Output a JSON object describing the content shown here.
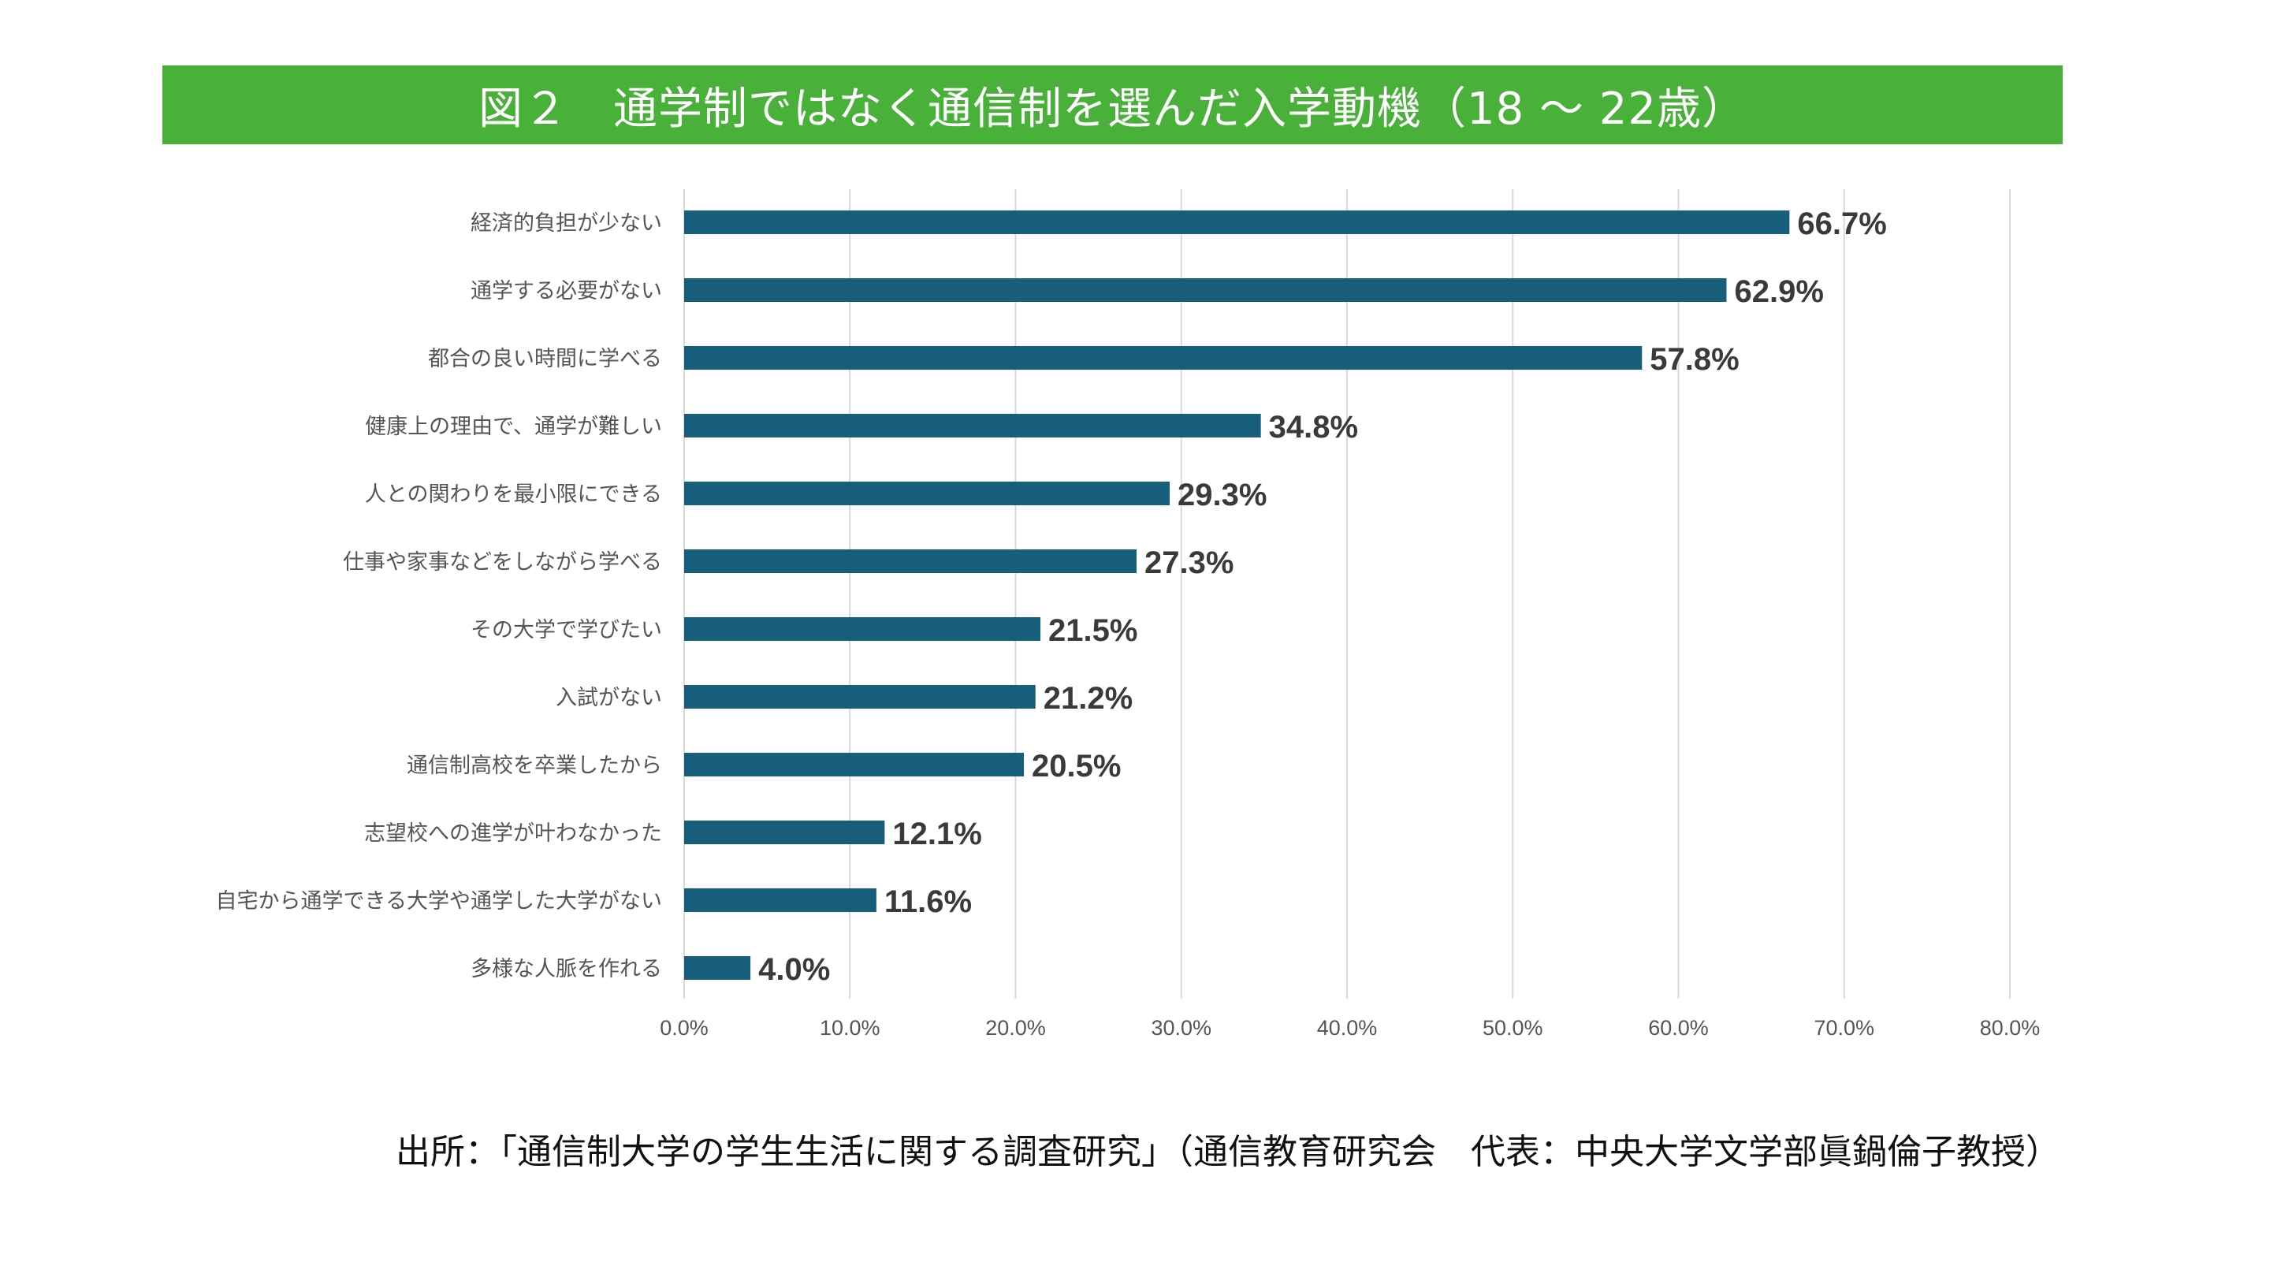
{
  "title": "図２　通学制ではなく通信制を選んだ入学動機（18 ～ 22歳）",
  "footer": "出所：「通信制大学の学生生活に関する調査研究」（通信教育研究会　代表：中央大学文学部眞鍋倫子教授）",
  "colors": {
    "title_background": "#49B03A",
    "bar": "#175E7D",
    "gridline": "#D9D9D9",
    "value_label": "#3A3A3A",
    "category_label": "#555555"
  },
  "chart_data": {
    "type": "bar",
    "orientation": "horizontal",
    "title": "図２　通学制ではなく通信制を選んだ入学動機（18 ～ 22歳）",
    "xlabel": "",
    "ylabel": "",
    "xlim": [
      0,
      80
    ],
    "x_unit": "%",
    "grid": true,
    "legend": "none",
    "categories": [
      "経済的負担が少ない",
      "通学する必要がない",
      "都合の良い時間に学べる",
      "健康上の理由で、通学が難しい",
      "人との関わりを最小限にできる",
      "仕事や家事などをしながら学べる",
      "その大学で学びたい",
      "入試がない",
      "通信制高校を卒業したから",
      "志望校への進学が叶わなかった",
      "自宅から通学できる大学や通学した大学がない",
      "多様な人脈を作れる"
    ],
    "values": [
      66.7,
      62.9,
      57.8,
      34.8,
      29.3,
      27.3,
      21.5,
      21.2,
      20.5,
      12.1,
      11.6,
      4.0
    ],
    "value_labels": [
      "66.7%",
      "62.9%",
      "57.8%",
      "34.8%",
      "29.3%",
      "27.3%",
      "21.5%",
      "21.2%",
      "20.5%",
      "12.1%",
      "11.6%",
      "4.0%"
    ],
    "x_ticks": [
      0,
      10,
      20,
      30,
      40,
      50,
      60,
      70,
      80
    ],
    "x_tick_labels": [
      "0.0%",
      "10.0%",
      "20.0%",
      "30.0%",
      "40.0%",
      "50.0%",
      "60.0%",
      "70.0%",
      "80.0%"
    ]
  }
}
